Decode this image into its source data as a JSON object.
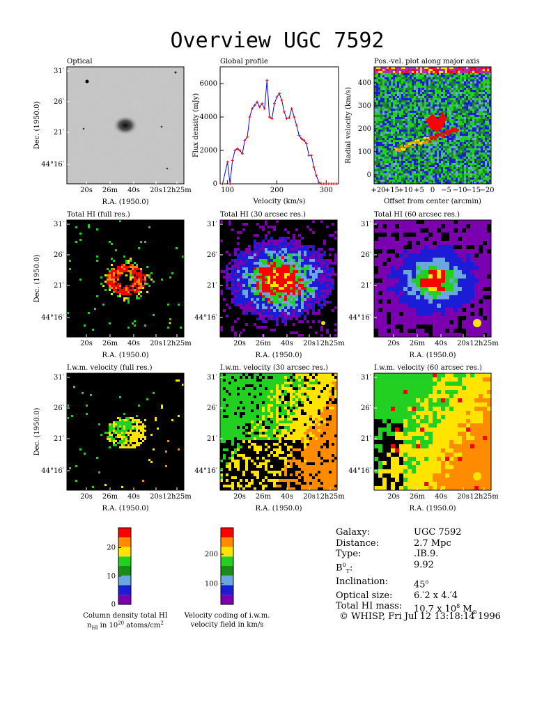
{
  "page": {
    "title": "Overview UGC 7592"
  },
  "panels": {
    "optical": {
      "title": "Optical"
    },
    "global_profile": {
      "title": "Global profile"
    },
    "pv": {
      "title": "Pos.-vel. plot along major axis"
    },
    "hi_full": {
      "title": "Total HI (full res.)"
    },
    "hi_30": {
      "title": "Total HI (30 arcsec res.)"
    },
    "hi_60": {
      "title": "Total HI (60 arcsec res.)"
    },
    "vel_full": {
      "title": "I.w.m. velocity (full res.)"
    },
    "vel_30": {
      "title": "I.w.m. velocity (30 arcsec res.)"
    },
    "vel_60": {
      "title": "I.w.m. velocity (60 arcsec res.)"
    }
  },
  "axes": {
    "dec_label": "Dec. (1950.0)",
    "ra_label": "R.A. (1950.0)",
    "dec_ticks": [
      "31′",
      "26′",
      "21′",
      "44°16′"
    ],
    "ra_ticks": [
      "20s",
      "26m",
      "40s",
      "20s",
      "12h25m"
    ]
  },
  "chart_data": [
    {
      "type": "line",
      "title": "Global profile",
      "xlabel": "Velocity (km/s)",
      "ylabel": "Flux density (mJy)",
      "xlim": [
        85,
        325
      ],
      "ylim": [
        0,
        7000
      ],
      "xticks": [
        100,
        200,
        300
      ],
      "yticks": [
        0,
        2000,
        4000,
        6000
      ],
      "series": [
        {
          "x": [
            90,
            100,
            105,
            110,
            115,
            120,
            125,
            130,
            135,
            140,
            145,
            150,
            155,
            160,
            165,
            170,
            175,
            180,
            185,
            190,
            195,
            200,
            205,
            210,
            215,
            220,
            225,
            230,
            235,
            240,
            245,
            250,
            255,
            260,
            265,
            270,
            275,
            280,
            285,
            290,
            295,
            300,
            305,
            310,
            315,
            320
          ],
          "y": [
            0,
            1300,
            0,
            1400,
            2000,
            2100,
            2000,
            1800,
            2600,
            2800,
            4000,
            4500,
            4700,
            4900,
            4600,
            4800,
            4500,
            6200,
            4000,
            3900,
            4800,
            5200,
            5400,
            5000,
            4300,
            3900,
            3950,
            4500,
            4000,
            3500,
            2900,
            2700,
            2600,
            2400,
            1700,
            1700,
            1000,
            500,
            100,
            0,
            0,
            0,
            0,
            0,
            0,
            0
          ]
        }
      ]
    },
    {
      "type": "heatmap",
      "title": "Pos.-vel. plot along major axis",
      "xlabel": "Offset from center (arcmin)",
      "ylabel": "Radial velocity (km/s)",
      "xtick_labels": [
        "+20",
        "+15",
        "+10",
        "+5",
        "0",
        "−5",
        "−10",
        "−15",
        "−20"
      ],
      "yticks": [
        0,
        100,
        200,
        300,
        400
      ],
      "ylim": [
        -40,
        470
      ]
    },
    {
      "type": "heatmap",
      "title": "Column density total HI",
      "xlabel": "Column density total HI n_HI in 10^20 atoms/cm^2",
      "colorbar_ticks": [
        0,
        10,
        20
      ],
      "colorbar_range": [
        0,
        27
      ],
      "colors": [
        "#7a00b0",
        "#1c1cd6",
        "#6aa6e0",
        "#1a8a1a",
        "#22d022",
        "#ffe400",
        "#ff8c00",
        "#ff0000"
      ]
    },
    {
      "type": "heatmap",
      "title": "Velocity coding of i.w.m. velocity field in km/s",
      "xlabel": "Velocity coding of i.w.m. velocity field in km/s",
      "colorbar_ticks": [
        100,
        200
      ],
      "colorbar_range": [
        30,
        290
      ],
      "colors": [
        "#7a00b0",
        "#1c1cd6",
        "#6aa6e0",
        "#1a8a1a",
        "#22d022",
        "#ffe400",
        "#ff8c00",
        "#ff0000"
      ]
    }
  ],
  "legends": {
    "colden_line1": "Column density total HI",
    "colden_line2a": "n",
    "colden_line2b": "HI",
    "colden_line2c": " in 10",
    "colden_line2d": "20",
    "colden_line2e": " atoms/cm",
    "colden_line2f": "2",
    "vel_line1": "Velocity coding of i.w.m.",
    "vel_line2": "velocity field in km/s"
  },
  "info": {
    "galaxy_k": "Galaxy:",
    "galaxy_v": "UGC 7592",
    "distance_k": "Distance:",
    "distance_v": "2.7 Mpc",
    "type_k": "Type:",
    "type_v": ".IB.9.",
    "bt_k": "B",
    "bt_sup": "0",
    "bt_sub": "T",
    "bt_colon": ":",
    "bt_v": "9.92",
    "incl_k": "Inclination:",
    "incl_v": "45",
    "incl_deg": "o",
    "size_k": "Optical size:",
    "size_v": "6.′2 x 4.′4",
    "mass_k": "Total HI mass:",
    "mass_v": "10.7 x 10",
    "mass_exp": "8",
    "mass_unit": " M",
    "copyright": "© WHISP, Fri Jul 12 13:18:14 1996"
  },
  "colors": {
    "purple": "#7a00b0",
    "blue": "#1c1cd6",
    "lightblue": "#6aa6e0",
    "darkgreen": "#1a8a1a",
    "green": "#22d022",
    "yellow": "#ffe400",
    "orange": "#ff8c00",
    "red": "#ff0000",
    "profile_line": "#0000ff",
    "profile_marker": "#ff0000"
  }
}
